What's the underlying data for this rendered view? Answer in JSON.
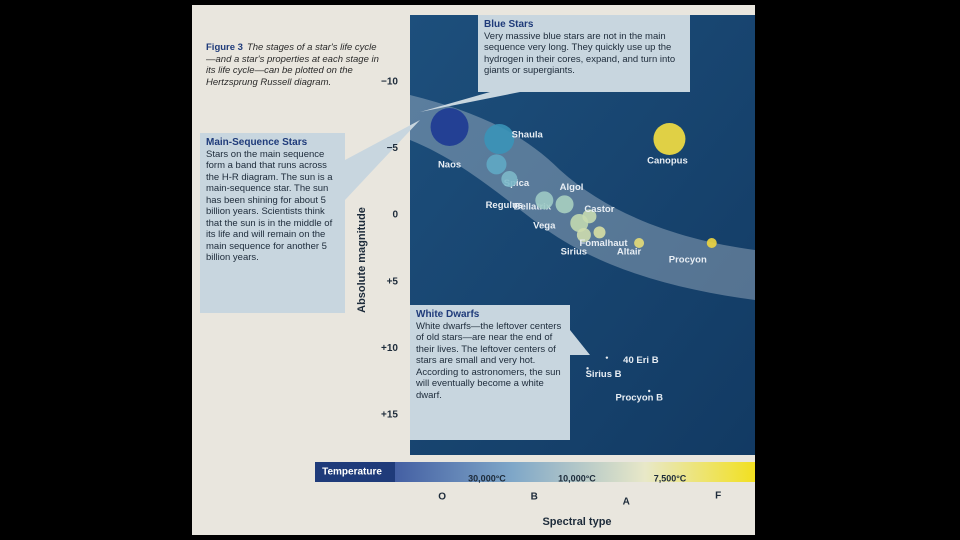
{
  "caption": {
    "label": "Figure 3",
    "text": "The stages of a star's life cycle—and a star's properties at each stage in its life cycle—can be plotted on the Hertzsprung Russell diagram."
  },
  "callouts": [
    {
      "title": "Blue Stars",
      "text": "Very massive blue stars are not in the main sequence very long. They quickly use up the hydrogen in their cores, expand, and turn into giants or supergiants."
    },
    {
      "title": "Main-Sequence Stars",
      "text": "Stars on the main sequence form a band that runs across the H-R diagram. The sun is a main-sequence star. The sun has been shining for about 5 billion years. Scientists think that the sun is in the middle of its life and will remain on the main sequence for another 5 billion years."
    },
    {
      "title": "White Dwarfs",
      "text": "White dwarfs—the leftover centers of old stars—are near the end of their lives. The leftover centers of stars are small and very hot. According to astronomers, the sun will eventually become a white dwarf."
    }
  ],
  "chart_data": {
    "type": "scatter",
    "xlabel": "Spectral type",
    "ylabel": "Absolute magnitude",
    "xlim": [
      -0.35,
      3.4
    ],
    "ylim": [
      -15,
      18
    ],
    "y_inverted": true,
    "xticks": [
      {
        "value": 0,
        "label": "O"
      },
      {
        "value": 1,
        "label": "B"
      },
      {
        "value": 2,
        "label": "A"
      },
      {
        "value": 3,
        "label": "F"
      }
    ],
    "yticks": [
      {
        "value": -10,
        "label": "−10"
      },
      {
        "value": -5,
        "label": "−5"
      },
      0,
      {
        "value": 5,
        "label": "+5"
      },
      {
        "value": 10,
        "label": "+10"
      },
      {
        "value": 15,
        "label": "+15"
      }
    ],
    "point_labels": [
      "Naos",
      "Shaula",
      "Spica",
      "Bellatrix",
      "Regulus",
      "Algol",
      "Vega",
      "Castor",
      "Sirius",
      "Fomalhaut",
      "Altair",
      "Procyon",
      "Canopus",
      "40 Eri B",
      "Sirius B",
      "Procyon B"
    ],
    "x": [
      0.08,
      0.62,
      0.59,
      0.73,
      1.11,
      1.33,
      1.49,
      1.6,
      1.54,
      1.71,
      2.14,
      2.93,
      2.47,
      1.79,
      1.58,
      2.25
    ],
    "values": [
      -6.6,
      -5.7,
      -3.8,
      -2.7,
      -1.1,
      -0.8,
      0.6,
      0.1,
      1.5,
      1.3,
      2.1,
      2.1,
      -5.7,
      10.7,
      11.5,
      13.2
    ],
    "colors": [
      "#1d3a94",
      "#3a93b8",
      "#5fa9c4",
      "#7cb8c9",
      "#9cc9c4",
      "#a9cfc0",
      "#c2d8b0",
      "#c8dab0",
      "#cedcae",
      "#d8dfa4",
      "#e6dc78",
      "#f0d640",
      "#f6e040",
      "#ffffff",
      "#ffffff",
      "#ffffff"
    ]
  },
  "temperature_scale": {
    "title": "Temperature",
    "labels": [
      "30,000°C",
      "10,000°C",
      "7,500°C"
    ]
  }
}
